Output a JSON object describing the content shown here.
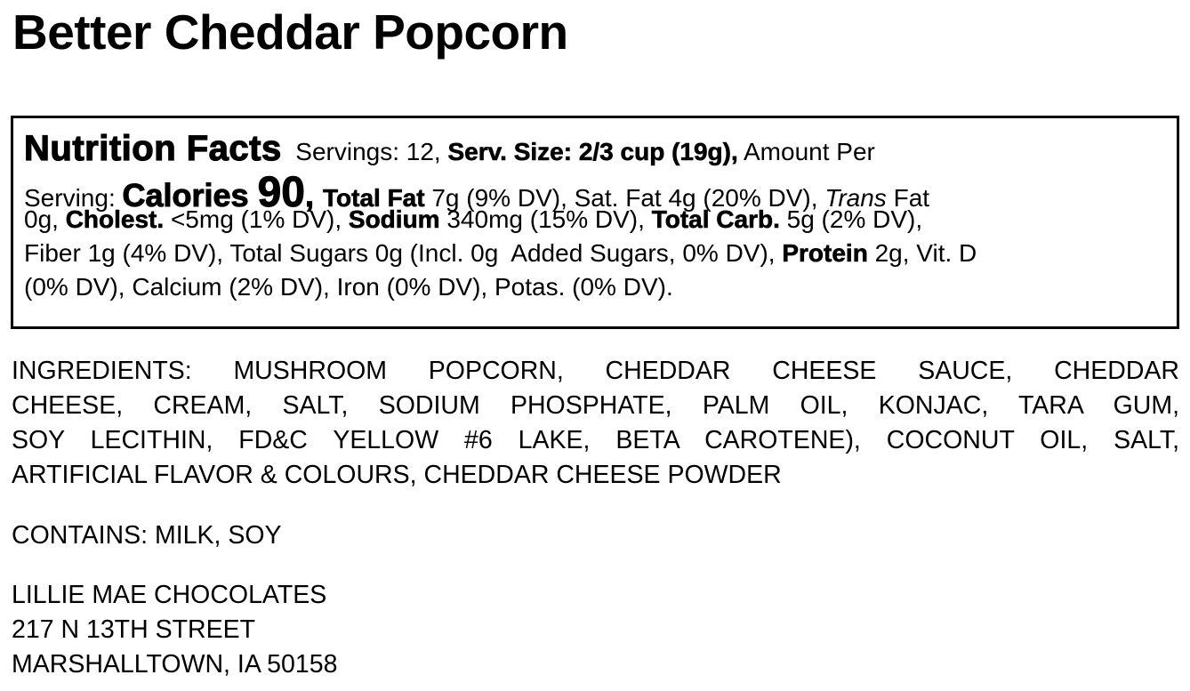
{
  "title": "Better Cheddar Popcorn",
  "nutrition_facts": {
    "lines": [
      [
        {
          "text": "Nutrition Facts",
          "style": "heading"
        },
        {
          "text": "  Servings: 12, ",
          "style": "normal"
        },
        {
          "text": "Serv. Size: 2/3 cup (19g),",
          "style": "bold"
        },
        {
          "text": " Amount Per",
          "style": "normal"
        }
      ],
      [
        {
          "text": "Serving: ",
          "style": "normal"
        },
        {
          "text": "Calories ",
          "style": "calories"
        },
        {
          "text": "90",
          "style": "calnum"
        },
        {
          "text": ", ",
          "style": "calories"
        },
        {
          "text": "Total Fat",
          "style": "bold"
        },
        {
          "text": " 7g (9% DV), Sat. Fat 4g (20% DV), ",
          "style": "normal"
        },
        {
          "text": "Trans",
          "style": "italic"
        },
        {
          "text": " Fat",
          "style": "normal"
        }
      ],
      [
        {
          "text": "0g, ",
          "style": "normal"
        },
        {
          "text": "Cholest.",
          "style": "bold"
        },
        {
          "text": " <5mg (1% DV), ",
          "style": "normal"
        },
        {
          "text": "Sodium",
          "style": "bold"
        },
        {
          "text": " 340mg (15% DV), ",
          "style": "normal"
        },
        {
          "text": "Total Carb.",
          "style": "bold"
        },
        {
          "text": " 5g (2% DV),",
          "style": "normal"
        }
      ],
      [
        {
          "text": "Fiber 1g (4% DV), Total Sugars 0g (Incl. 0g  Added Sugars, 0% DV), ",
          "style": "normal"
        },
        {
          "text": "Protein",
          "style": "bold"
        },
        {
          "text": " 2g, Vit. D",
          "style": "normal"
        }
      ],
      [
        {
          "text": "(0% DV), Calcium (2% DV), Iron (0% DV), Potas. (0% DV).",
          "style": "normal"
        }
      ]
    ]
  },
  "ingredients": {
    "lines": [
      "INGREDIENTS: MUSHROOM POPCORN, CHEDDAR CHEESE SAUCE, CHEDDAR",
      "CHEESE, CREAM, SALT, SODIUM PHOSPHATE, PALM OIL, KONJAC, TARA GUM,",
      "SOY LECITHIN, FD&C YELLOW #6 LAKE, BETA CAROTENE), COCONUT OIL, SALT,",
      "ARTIFICIAL FLAVOR & COLOURS, CHEDDAR CHEESE POWDER"
    ]
  },
  "allergens": "CONTAINS: MILK, SOY",
  "manufacturer": {
    "name": "LILLIE MAE CHOCOLATES",
    "street": "217 N 13TH STREET",
    "city_state_zip": "MARSHALLTOWN, IA 50158"
  }
}
